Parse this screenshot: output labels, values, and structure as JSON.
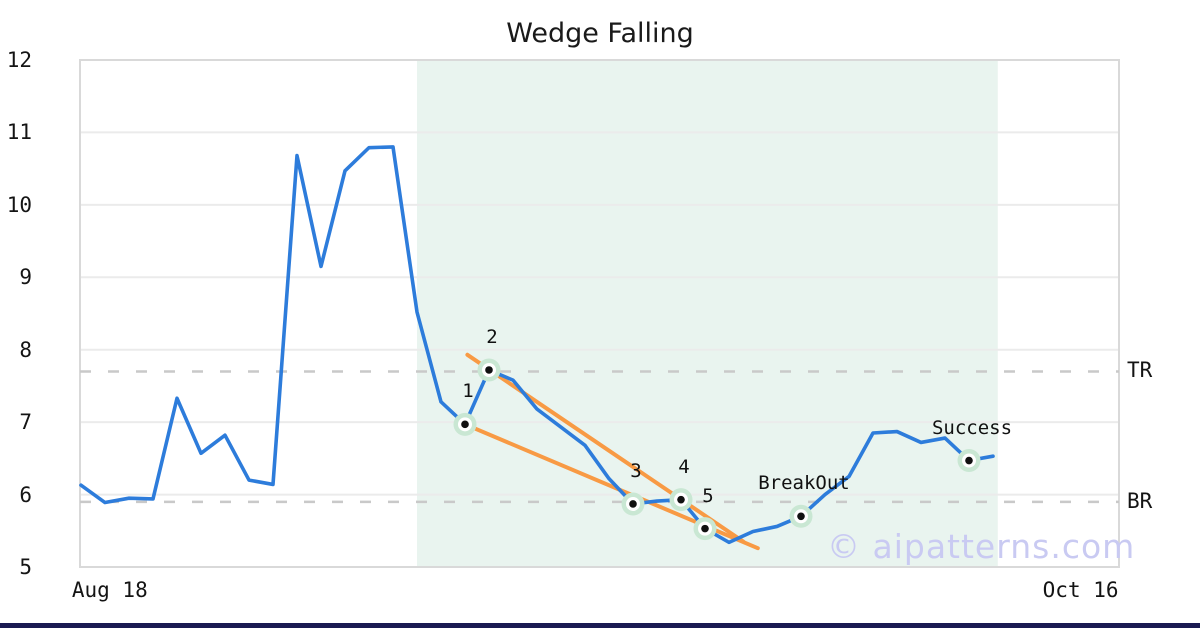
{
  "chart_data": {
    "type": "line",
    "title": "Wedge Falling",
    "watermark": "© aipatterns.com",
    "grid": "horizontal",
    "legend": "none",
    "ylim": [
      5,
      12
    ],
    "y_ticks": [
      12,
      11,
      10,
      9,
      8,
      7,
      6,
      5
    ],
    "x_ticks": [
      {
        "label": "Aug 18",
        "i": 1.2
      },
      {
        "label": "Oct 16",
        "i": 41.65
      }
    ],
    "series": {
      "name": "price",
      "values": [
        6.13,
        5.89,
        5.95,
        5.94,
        7.33,
        6.57,
        6.82,
        6.2,
        6.14,
        10.68,
        9.15,
        10.47,
        10.79,
        10.8,
        8.52,
        7.28,
        6.97,
        7.72,
        7.58,
        7.18,
        6.93,
        6.68,
        6.22,
        5.87,
        5.91,
        5.93,
        5.53,
        5.34,
        5.49,
        5.56,
        5.7,
        6.0,
        6.25,
        6.85,
        6.87,
        6.72,
        6.78,
        6.47,
        6.53
      ]
    },
    "annotated_points": [
      {
        "label": "1",
        "i": 16,
        "value": 6.97
      },
      {
        "label": "2",
        "i": 17,
        "value": 7.72
      },
      {
        "label": "3",
        "i": 23,
        "value": 5.87
      },
      {
        "label": "4",
        "i": 25,
        "value": 5.93
      },
      {
        "label": "5",
        "i": 26,
        "value": 5.53
      },
      {
        "label": "BreakOut",
        "i": 30,
        "value": 5.7
      },
      {
        "label": "Success",
        "i": 37,
        "value": 6.47
      }
    ],
    "levels": [
      {
        "label": "TR",
        "value": 7.7
      },
      {
        "label": "BR",
        "value": 5.9
      }
    ],
    "trendlines": [
      {
        "name": "upper",
        "i": [
          16.1,
          27.6
        ],
        "values": [
          7.93,
          5.35
        ]
      },
      {
        "name": "lower",
        "i": [
          16.0,
          28.2
        ],
        "values": [
          6.97,
          5.26
        ]
      }
    ],
    "pattern_region_i": [
      14.0,
      38.2
    ]
  },
  "colors": {
    "line": "#2d7cdb",
    "trend": "#f89a44",
    "halo": "#c9e7d3",
    "marker_ring": "#ffffff",
    "marker_dot": "#111111",
    "shade": "#e9f4ef",
    "grid": "#ebebeb",
    "border": "#d9d9d9",
    "dashed": "#c9c9c9",
    "text": "#1a1a1a",
    "watermark": "#c9caf2",
    "footer": "#1a1a52"
  }
}
